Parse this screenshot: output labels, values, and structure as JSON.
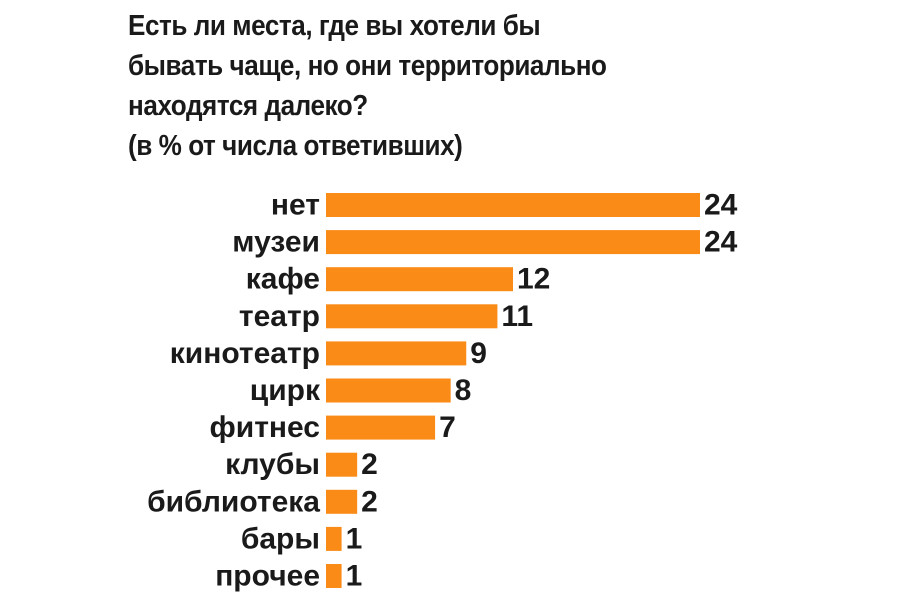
{
  "chart_data": {
    "type": "bar",
    "orientation": "horizontal",
    "title_lines": [
      "Есть ли места, где вы хотели бы",
      "бывать чаще, но они территориально",
      "находятся далеко?",
      "(в % от числа ответивших)"
    ],
    "categories": [
      "нет",
      "музеи",
      "кафе",
      "театр",
      "кинотеатр",
      "цирк",
      "фитнес",
      "клубы",
      "библиотека",
      "бары",
      "прочее"
    ],
    "values": [
      24,
      24,
      12,
      11,
      9,
      8,
      7,
      2,
      2,
      1,
      1
    ],
    "value_labels": [
      "24",
      "24",
      "12",
      "11",
      "9",
      "8",
      "7",
      "2",
      "2",
      "1",
      "1"
    ],
    "bar_color": "#fb8b17",
    "xlim": [
      0,
      24
    ],
    "grid": false,
    "legend": "none"
  }
}
